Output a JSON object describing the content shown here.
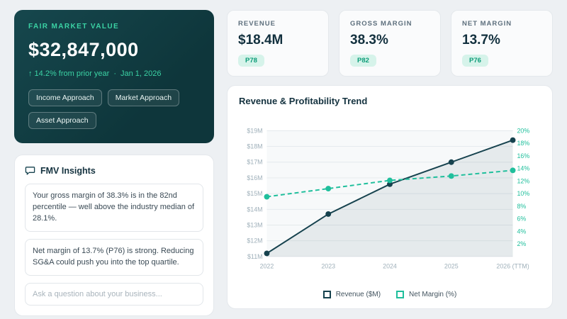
{
  "fmv_card": {
    "label": "FAIR MARKET VALUE",
    "value": "$32,847,000",
    "delta": "↑ 14.2% from prior year",
    "separator": "·",
    "date": "Jan 1, 2026",
    "chips": [
      "Income Approach",
      "Market Approach",
      "Asset Approach"
    ]
  },
  "insights": {
    "title": "FMV Insights",
    "items": [
      "Your gross margin of 38.3% is in the 82nd percentile — well above the industry median of 28.1%.",
      "Net margin of 13.7% (P76) is strong. Reducing SG&A could push you into the top quartile."
    ],
    "input_placeholder": "Ask a question about your business..."
  },
  "kpis": [
    {
      "label": "REVENUE",
      "value": "$18.4M",
      "badge": "P78"
    },
    {
      "label": "GROSS MARGIN",
      "value": "38.3%",
      "badge": "P82"
    },
    {
      "label": "NET MARGIN",
      "value": "13.7%",
      "badge": "P76"
    }
  ],
  "chart": {
    "title": "Revenue & Profitability Trend"
  },
  "chart_data": {
    "type": "line",
    "title": "Revenue & Profitability Trend",
    "x": [
      "2022",
      "2023",
      "2024",
      "2025",
      "2026 (TTM)"
    ],
    "series": [
      {
        "name": "Revenue ($M)",
        "axis": "left",
        "values": [
          11.2,
          13.7,
          15.6,
          17.0,
          18.4
        ],
        "style": "solid",
        "color": "#16424e",
        "area": true
      },
      {
        "name": "Net Margin (%)",
        "axis": "right",
        "values": [
          9.5,
          10.8,
          12.1,
          12.8,
          13.7
        ],
        "style": "dashed",
        "color": "#1fbf9c"
      }
    ],
    "left_axis": {
      "min": 11,
      "max": 19,
      "ticks": [
        "$11M",
        "$12M",
        "$13M",
        "$14M",
        "$15M",
        "$16M",
        "$17M",
        "$18M",
        "$19M"
      ]
    },
    "right_axis": {
      "min": 0,
      "max": 20,
      "ticks": [
        "2%",
        "4%",
        "6%",
        "8%",
        "10%",
        "12%",
        "14%",
        "16%",
        "18%",
        "20%"
      ]
    },
    "grid": true,
    "legend_position": "bottom",
    "colors": {
      "grid": "#e4e9ec",
      "axis_text": "#9fb0ba",
      "right_axis_text": "#1fbf9c",
      "plot_bg": "#f7f9fa"
    }
  }
}
